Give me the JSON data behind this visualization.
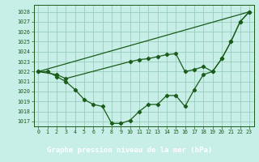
{
  "title": "Graphe pression niveau de la mer (hPa)",
  "bg_color": "#c8eee8",
  "plot_bg_color": "#c8eee8",
  "bottom_bg": "#2d6e2d",
  "grid_color": "#99ccbb",
  "line_color": "#1a5c1a",
  "marker_color": "#1a5c1a",
  "xlim": [
    -0.5,
    23.5
  ],
  "ylim": [
    1016.5,
    1028.7
  ],
  "yticks": [
    1017,
    1018,
    1019,
    1020,
    1021,
    1022,
    1023,
    1024,
    1025,
    1026,
    1027,
    1028
  ],
  "xticks": [
    0,
    1,
    2,
    3,
    4,
    5,
    6,
    7,
    8,
    9,
    10,
    11,
    12,
    13,
    14,
    15,
    16,
    17,
    18,
    19,
    20,
    21,
    22,
    23
  ],
  "series1_x": [
    0,
    1,
    2,
    3,
    4,
    5,
    6,
    7,
    8,
    9,
    10,
    11,
    12,
    13,
    14,
    15,
    16,
    17,
    18,
    19,
    20,
    21,
    22,
    23
  ],
  "series1_y": [
    1022,
    1022,
    1021.5,
    1021,
    1020.2,
    1019.2,
    1018.7,
    1018.5,
    1016.8,
    1016.8,
    1017.1,
    1018.0,
    1018.7,
    1018.7,
    1019.6,
    1019.6,
    1018.5,
    1020.2,
    1021.7,
    1022.0,
    1023.3,
    1025.0,
    1027.0,
    1028.0
  ],
  "series2_x": [
    0,
    2,
    3,
    10,
    11,
    12,
    13,
    14,
    15,
    16,
    17,
    18,
    19,
    20,
    21,
    22,
    23
  ],
  "series2_y": [
    1022,
    1021.7,
    1021.3,
    1023.0,
    1023.2,
    1023.3,
    1023.5,
    1023.7,
    1023.8,
    1022.0,
    1022.2,
    1022.5,
    1022.0,
    1023.3,
    1025.0,
    1027.0,
    1028.0
  ],
  "series3_x": [
    0,
    23
  ],
  "series3_y": [
    1022,
    1028
  ]
}
